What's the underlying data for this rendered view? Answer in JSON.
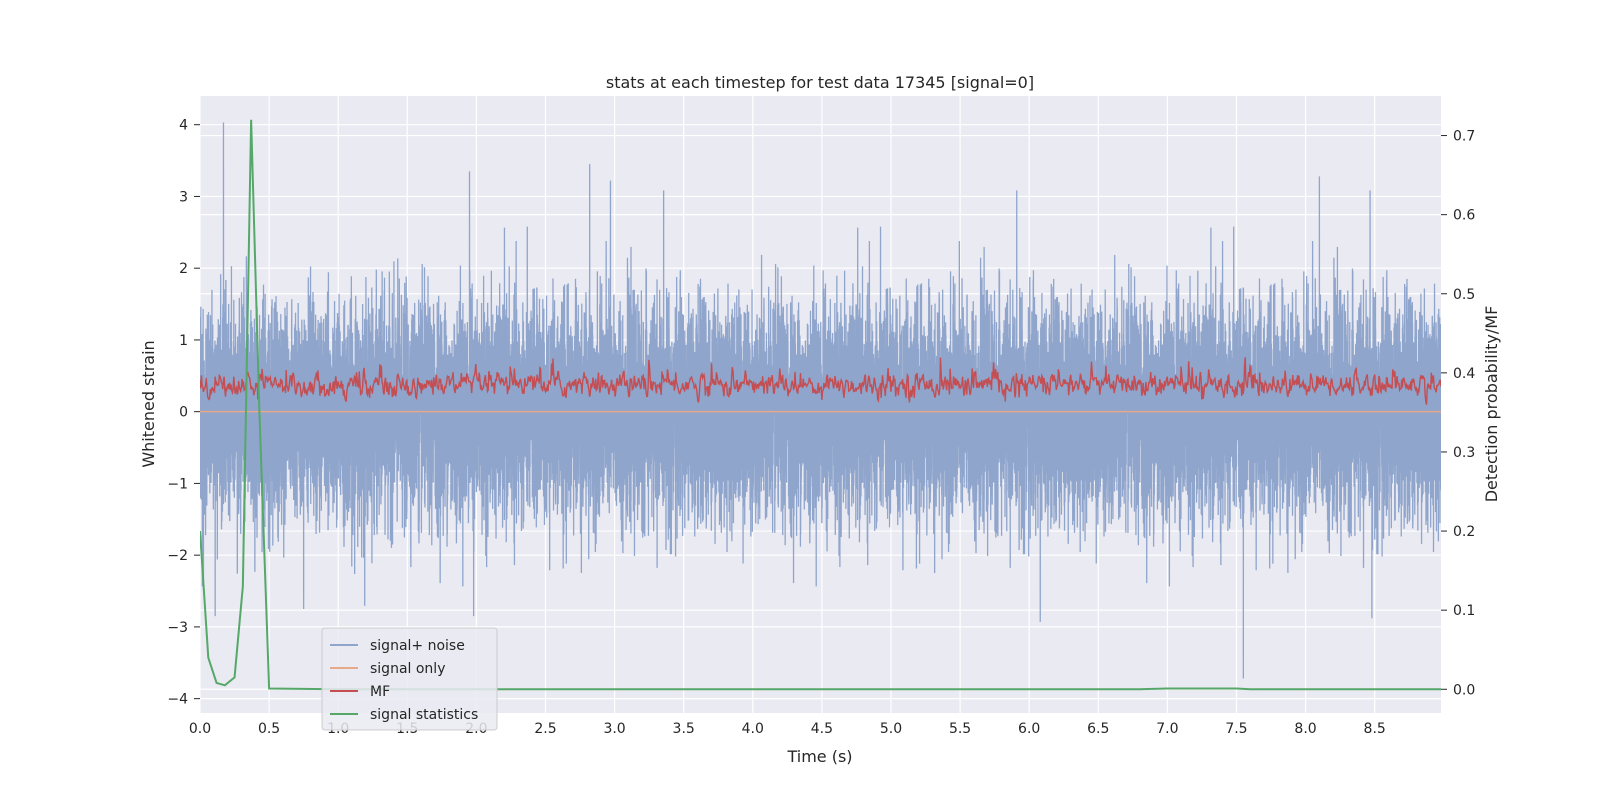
{
  "chart_data": {
    "type": "line",
    "title": "stats at each timestep for test data 17345 [signal=0]",
    "xlabel": "Time (s)",
    "ylabel": "Whitened strain",
    "ylabel_right": "Detection probability/MF",
    "xlim": [
      0,
      8.98
    ],
    "ylim": [
      -4.2,
      4.4
    ],
    "ylim_right": [
      -0.03,
      0.75
    ],
    "x_ticks": [
      0.0,
      0.5,
      1.0,
      1.5,
      2.0,
      2.5,
      3.0,
      3.5,
      4.0,
      4.5,
      5.0,
      5.5,
      6.0,
      6.5,
      7.0,
      7.5,
      8.0,
      8.5
    ],
    "x_tick_labels": [
      "0.0",
      "0.5",
      "1.0",
      "1.5",
      "2.0",
      "2.5",
      "3.0",
      "3.5",
      "4.0",
      "4.5",
      "5.0",
      "5.5",
      "6.0",
      "6.5",
      "7.0",
      "7.5",
      "8.0",
      "8.5"
    ],
    "y_ticks": [
      4,
      3,
      2,
      1,
      0,
      -1,
      -2,
      -3,
      -4
    ],
    "y_tick_labels": [
      "4",
      "3",
      "2",
      "1",
      "0",
      "−1",
      "−2",
      "−3",
      "−4"
    ],
    "y_right_ticks": [
      0.7,
      0.6,
      0.5,
      0.4,
      0.3,
      0.2,
      0.1,
      0.0
    ],
    "y_right_tick_labels": [
      "0.7",
      "0.6",
      "0.5",
      "0.4",
      "0.3",
      "0.2",
      "0.1",
      "0.0"
    ],
    "grid": true,
    "legend_position": "lower-left",
    "series": [
      {
        "name": "signal+ noise",
        "axis": "left",
        "color": "#8fa5cc",
        "kind": "noise",
        "sample_rate_hz": 2048,
        "std": 0.72,
        "peaks": [
          [
            0.17,
            4.03
          ],
          [
            1.95,
            3.35
          ],
          [
            2.82,
            3.45
          ],
          [
            2.97,
            3.22
          ],
          [
            8.1,
            3.28
          ],
          [
            7.55,
            -3.72
          ],
          [
            6.08,
            -2.93
          ],
          [
            0.11,
            -2.85
          ],
          [
            8.48,
            -2.88
          ],
          [
            0.75,
            -2.75
          ],
          [
            1.98,
            -2.85
          ]
        ]
      },
      {
        "name": "signal only",
        "axis": "left",
        "color": "#e8a98a",
        "kind": "flat",
        "value": 0
      },
      {
        "name": "MF",
        "axis": "right",
        "color": "#c44e52",
        "kind": "mf",
        "mean": 0.385,
        "min": 0.35,
        "max": 0.43
      },
      {
        "name": "signal statistics",
        "axis": "right",
        "color": "#55a868",
        "kind": "line",
        "x": [
          0.0,
          0.06,
          0.12,
          0.18,
          0.25,
          0.31,
          0.37,
          0.43,
          0.5,
          1.0,
          2.0,
          3.0,
          4.0,
          5.0,
          6.0,
          6.8,
          7.0,
          7.5,
          7.6,
          8.0,
          8.98
        ],
        "y": [
          0.2,
          0.04,
          0.008,
          0.005,
          0.015,
          0.13,
          0.72,
          0.35,
          0.001,
          0.0,
          0.0,
          0.0,
          0.0,
          0.0,
          0.0,
          0.0,
          0.001,
          0.001,
          0.0,
          0.0,
          0.0
        ]
      }
    ]
  }
}
